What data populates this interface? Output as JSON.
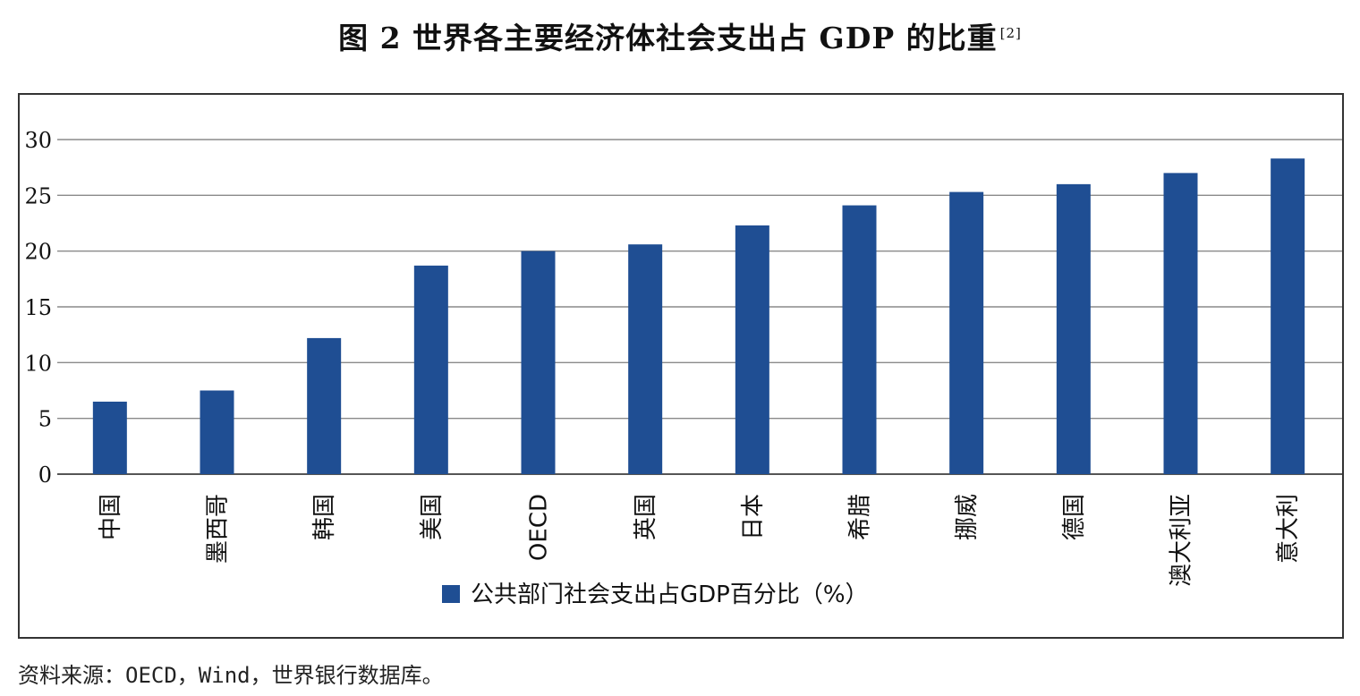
{
  "figure": {
    "title": "图 2  世界各主要经济体社会支出占 GDP 的比重",
    "title_ref": "[2]",
    "source": "资料来源：OECD，Wind，世界银行数据库。"
  },
  "chart_data": {
    "type": "bar",
    "categories": [
      "中国",
      "墨西哥",
      "韩国",
      "美国",
      "OECD",
      "英国",
      "日本",
      "希腊",
      "挪威",
      "德国",
      "澳大利亚",
      "意大利"
    ],
    "series": [
      {
        "name": "公共部门社会支出占GDP百分比（%）",
        "values": [
          6.5,
          7.5,
          12.2,
          18.7,
          20.0,
          20.6,
          22.3,
          24.1,
          25.3,
          26.0,
          27.0,
          28.3
        ]
      }
    ],
    "ylim": [
      0,
      30
    ],
    "yticks": [
      0,
      5,
      10,
      15,
      20,
      25,
      30
    ],
    "grid": true,
    "legend": "bottom-center",
    "color": "#1f4e93"
  }
}
